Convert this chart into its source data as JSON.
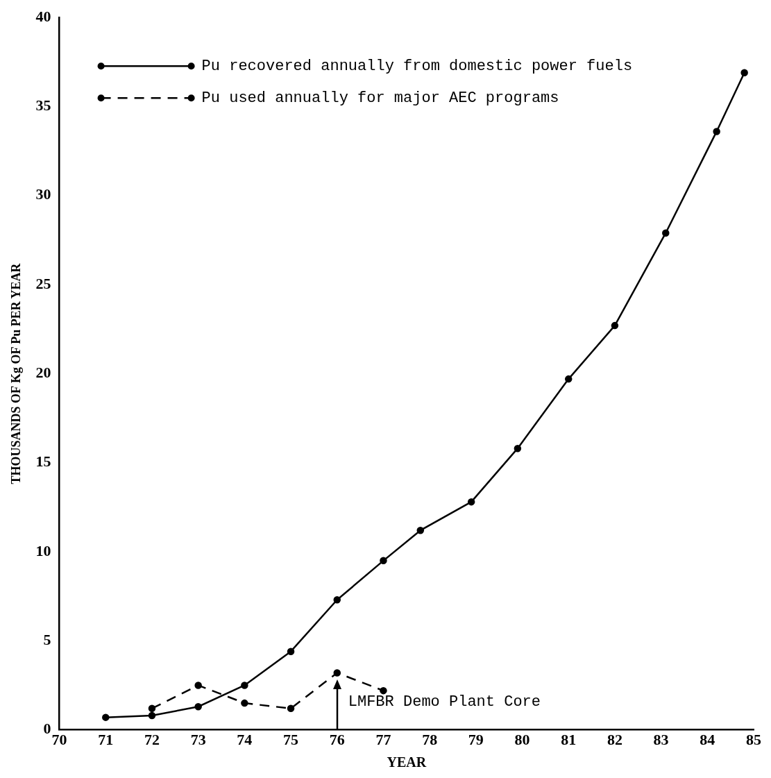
{
  "chart_data": {
    "type": "line",
    "xlabel": "YEAR",
    "ylabel": "THOUSANDS OF Kg OF Pu PER YEAR",
    "xlim": [
      70,
      85
    ],
    "xticks": [
      70,
      71,
      72,
      73,
      74,
      75,
      76,
      77,
      78,
      79,
      80,
      81,
      82,
      83,
      84,
      85
    ],
    "ylim": [
      0,
      40
    ],
    "yticks": [
      0,
      5,
      10,
      15,
      20,
      25,
      30,
      35,
      40
    ],
    "grid": false,
    "legend": "top left",
    "marker": "circle",
    "series": [
      {
        "name": "Pu recovered annually from domestic power fuels",
        "color": "#000000",
        "line_style": "solid",
        "x": [
          71,
          72,
          73,
          74,
          75,
          76,
          77,
          77.8,
          78.9,
          79.9,
          81,
          82,
          83.1,
          84.2,
          84.8
        ],
        "values": [
          0.7,
          0.8,
          1.3,
          2.5,
          4.4,
          7.3,
          9.5,
          11.2,
          12.8,
          15.8,
          19.7,
          22.7,
          27.9,
          33.6,
          36.9
        ]
      },
      {
        "name": "Pu used annually for major AEC programs",
        "color": "#000000",
        "line_style": "dashed",
        "x": [
          72,
          73,
          74,
          75,
          76,
          77
        ],
        "values": [
          1.2,
          2.5,
          1.5,
          1.2,
          3.2,
          2.2
        ]
      }
    ],
    "annotations": [
      {
        "text": "LMFBR Demo Plant Core",
        "x": 76,
        "y": 3.2
      }
    ]
  }
}
